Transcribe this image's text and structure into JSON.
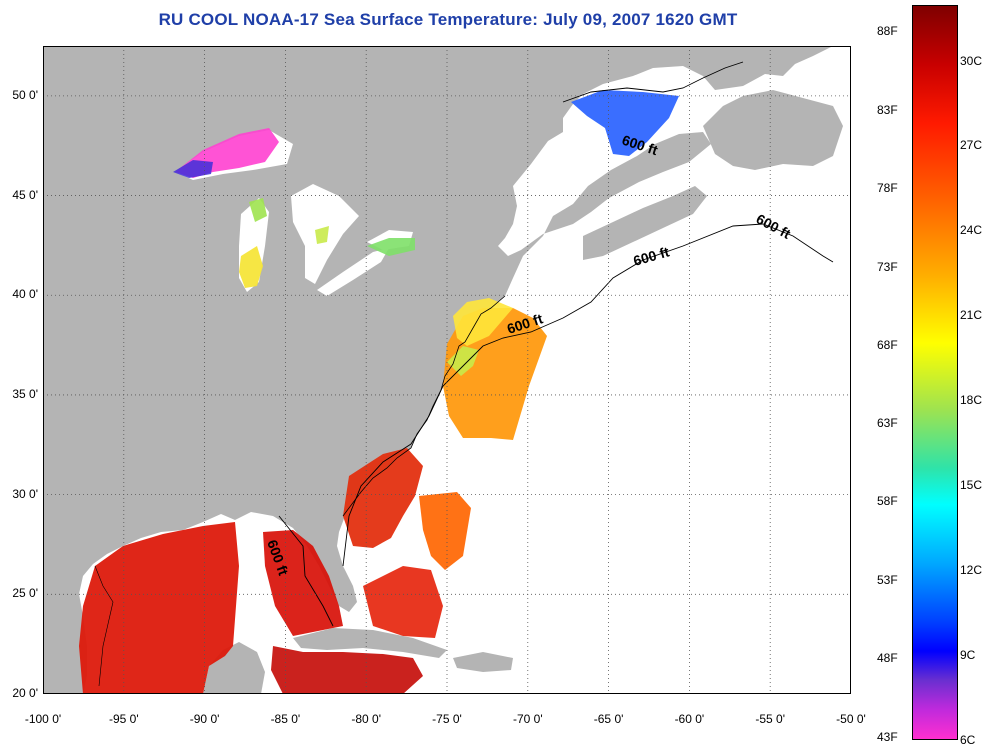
{
  "title": "RU COOL  NOAA-17  Sea Surface Temperature:  July 09, 2007 1620 GMT",
  "map": {
    "lon_range": [
      -100,
      -50
    ],
    "lat_range": [
      20,
      52.5
    ],
    "x_ticks": [
      "-100 0'",
      "-95 0'",
      "-90 0'",
      "-85 0'",
      "-80 0'",
      "-75 0'",
      "-70 0'",
      "-65 0'",
      "-60 0'",
      "-55 0'",
      "-50 0'"
    ],
    "y_ticks": [
      "50 0'",
      "45 0'",
      "40 0'",
      "35 0'",
      "30 0'",
      "25 0'",
      "20 0'"
    ],
    "land_color": "#b4b4b4",
    "contour_labels": [
      "600 ft",
      "600 ft",
      "600 ft",
      "600 ft",
      "600 ft"
    ]
  },
  "colorbar": {
    "fahrenheit_labels": [
      "88F",
      "83F",
      "78F",
      "73F",
      "68F",
      "63F",
      "58F",
      "53F",
      "48F",
      "43F"
    ],
    "celsius_labels": [
      "30C",
      "27C",
      "24C",
      "21C",
      "18C",
      "15C",
      "12C",
      "9C",
      "6C"
    ],
    "range_c": [
      6,
      32
    ]
  }
}
